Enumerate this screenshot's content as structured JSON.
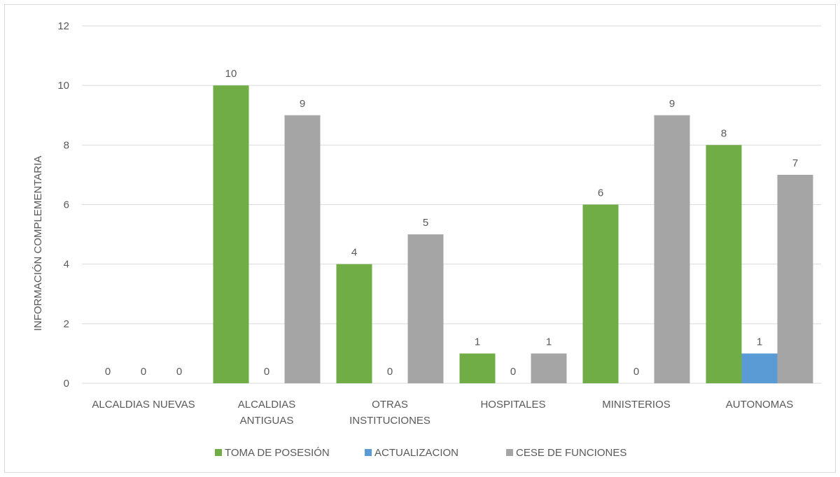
{
  "chart_data": {
    "type": "bar",
    "title": "",
    "xlabel": "",
    "ylabel": "INFORMACIÓN COMPLEMENTARIA",
    "ylim": [
      0,
      12
    ],
    "yticks": [
      0,
      2,
      4,
      6,
      8,
      10,
      12
    ],
    "grid": true,
    "legend_position": "bottom",
    "categories": [
      [
        "ALCALDIAS NUEVAS"
      ],
      [
        "ALCALDIAS",
        "ANTIGUAS"
      ],
      [
        "OTRAS",
        "INSTITUCIONES"
      ],
      [
        "HOSPITALES"
      ],
      [
        "MINISTERIOS"
      ],
      [
        "AUTONOMAS"
      ]
    ],
    "series": [
      {
        "name": "TOMA DE POSESIÓN",
        "color": "#70ad47",
        "values": [
          0,
          10,
          4,
          1,
          6,
          8
        ]
      },
      {
        "name": "ACTUALIZACION",
        "color": "#5b9bd5",
        "values": [
          0,
          0,
          0,
          0,
          0,
          1
        ]
      },
      {
        "name": "CESE DE FUNCIONES",
        "color": "#a5a5a5",
        "values": [
          0,
          9,
          5,
          1,
          9,
          7
        ]
      }
    ]
  }
}
